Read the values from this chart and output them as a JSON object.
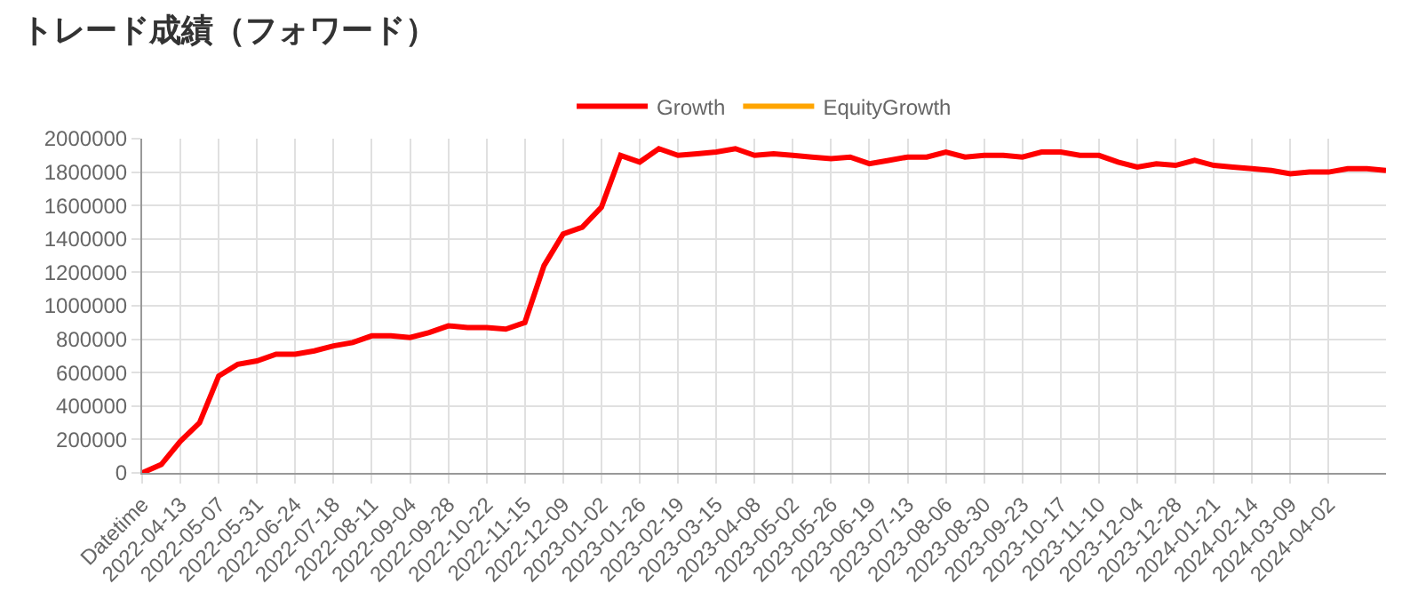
{
  "chart_data": {
    "type": "line",
    "title": "トレード成績（フォワード）",
    "categories": [
      "Datetime",
      null,
      "2022-04-13",
      null,
      "2022-05-07",
      null,
      "2022-05-31",
      null,
      "2022-06-24",
      null,
      "2022-07-18",
      null,
      "2022-08-11",
      null,
      "2022-09-04",
      null,
      "2022-09-28",
      null,
      "2022-10-22",
      null,
      "2022-11-15",
      null,
      "2022-12-09",
      null,
      "2023-01-02",
      null,
      "2023-01-26",
      null,
      "2023-02-19",
      null,
      "2023-03-15",
      null,
      "2023-04-08",
      null,
      "2023-05-02",
      null,
      "2023-05-26",
      null,
      "2023-06-19",
      null,
      "2023-07-13",
      null,
      "2023-08-06",
      null,
      "2023-08-30",
      null,
      "2023-09-23",
      null,
      "2023-10-17",
      null,
      "2023-11-10",
      null,
      "2023-12-04",
      null,
      "2023-12-28",
      null,
      "2024-01-21",
      null,
      "2024-02-14",
      null,
      "2024-03-09",
      null,
      "2024-04-02",
      null,
      null,
      null
    ],
    "series": [
      {
        "name": "Growth",
        "color": "#ff0000",
        "values": [
          0,
          50000,
          190000,
          300000,
          580000,
          650000,
          670000,
          710000,
          710000,
          730000,
          760000,
          780000,
          820000,
          820000,
          810000,
          840000,
          880000,
          870000,
          870000,
          860000,
          900000,
          1240000,
          1430000,
          1470000,
          1590000,
          1900000,
          1860000,
          1940000,
          1900000,
          1910000,
          1920000,
          1940000,
          1900000,
          1910000,
          1900000,
          1890000,
          1880000,
          1890000,
          1850000,
          1870000,
          1890000,
          1890000,
          1920000,
          1890000,
          1900000,
          1900000,
          1890000,
          1920000,
          1920000,
          1900000,
          1900000,
          1860000,
          1830000,
          1850000,
          1840000,
          1870000,
          1840000,
          1830000,
          1820000,
          1810000,
          1790000,
          1800000,
          1800000,
          1820000,
          1820000,
          1810000
        ]
      },
      {
        "name": "EquityGrowth",
        "color": "#ffa500",
        "values": [
          null,
          null,
          null,
          null,
          null,
          null,
          null,
          null,
          null,
          null,
          null,
          null,
          null,
          null,
          null,
          null,
          null,
          null,
          null,
          null,
          null,
          null,
          null,
          null,
          null,
          null,
          null,
          null,
          null,
          null,
          null,
          null,
          null,
          null,
          null,
          null,
          null,
          null,
          null,
          null,
          null,
          null,
          null,
          null,
          null,
          null,
          null,
          null,
          null,
          null,
          null,
          null,
          null,
          null,
          null,
          null,
          null,
          null,
          null,
          null,
          null,
          null,
          null,
          null,
          null,
          null
        ]
      }
    ],
    "ylim": [
      0,
      2000000
    ],
    "yticks": [
      0,
      200000,
      400000,
      600000,
      800000,
      1000000,
      1200000,
      1400000,
      1600000,
      1800000,
      2000000
    ],
    "grid": true,
    "legend": "top"
  }
}
